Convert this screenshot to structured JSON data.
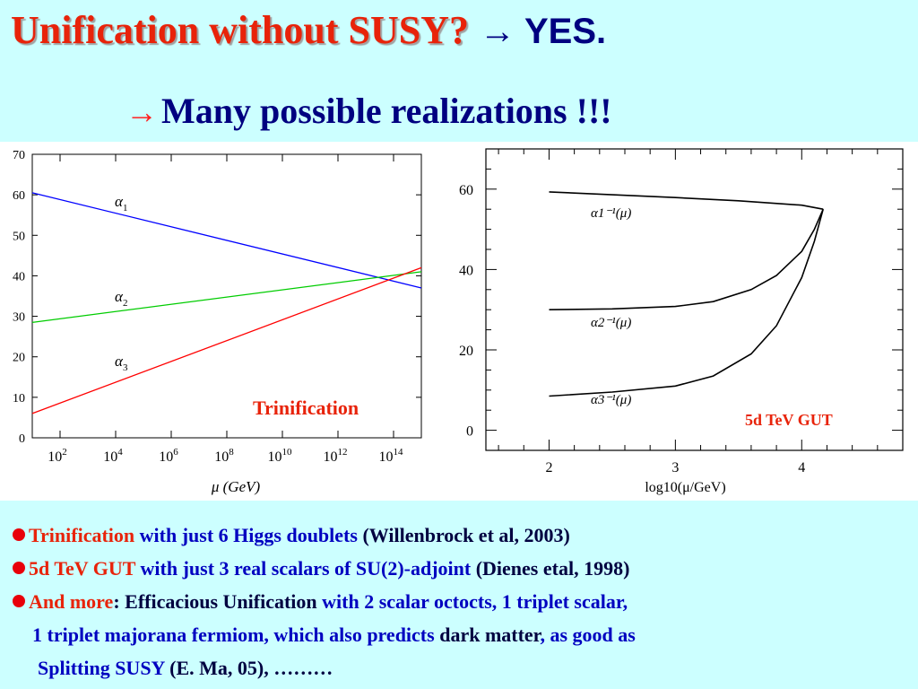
{
  "slide": {
    "title_red": "Unification without SUSY?",
    "title_arrow": "→",
    "title_yes": "YES.",
    "subtitle_arrow": "→",
    "subtitle": "Many possible realizations !!!"
  },
  "left_label": "Trinification",
  "right_label": "5d TeV GUT",
  "chart_data": [
    {
      "type": "line",
      "title": "",
      "xlabel": "μ (GeV)",
      "ylabel": "",
      "x_scale": "log",
      "xlim": [
        10,
        1000000000000000.0
      ],
      "ylim": [
        0,
        70
      ],
      "x_ticks": [
        "10^2",
        "10^4",
        "10^6",
        "10^8",
        "10^10",
        "10^12",
        "10^14"
      ],
      "y_ticks": [
        0,
        10,
        20,
        30,
        40,
        50,
        60,
        70
      ],
      "series": [
        {
          "name": "α1",
          "color": "#0000ff",
          "x": [
            10,
            1000000000000000.0
          ],
          "y": [
            60.5,
            37
          ]
        },
        {
          "name": "α2",
          "color": "#00cc00",
          "x": [
            10,
            1000000000000000.0
          ],
          "y": [
            28.5,
            41
          ]
        },
        {
          "name": "α3",
          "color": "#ff0000",
          "x": [
            10,
            1000000000000000.0
          ],
          "y": [
            6,
            42
          ]
        }
      ]
    },
    {
      "type": "line",
      "title": "",
      "xlabel": "log10(μ/GeV)",
      "ylabel": "",
      "xlim": [
        1.5,
        4.8
      ],
      "ylim": [
        -5,
        70
      ],
      "x_ticks": [
        2,
        3,
        4
      ],
      "y_ticks": [
        0,
        20,
        40,
        60
      ],
      "series": [
        {
          "name": "α1⁻¹(μ)",
          "x": [
            2,
            2.5,
            3,
            3.5,
            4,
            4.17
          ],
          "y": [
            59.3,
            58.6,
            57.9,
            57.1,
            56,
            55
          ]
        },
        {
          "name": "α2⁻¹(μ)",
          "x": [
            2,
            2.5,
            3,
            3.3,
            3.6,
            3.8,
            4.0,
            4.1,
            4.17
          ],
          "y": [
            30,
            30.2,
            30.8,
            32,
            35,
            38.5,
            44.5,
            50,
            55
          ]
        },
        {
          "name": "α3⁻¹(μ)",
          "x": [
            2,
            2.5,
            3,
            3.3,
            3.6,
            3.8,
            4.0,
            4.1,
            4.17
          ],
          "y": [
            8.5,
            9.5,
            11,
            13.5,
            19,
            26,
            38,
            47,
            55
          ]
        }
      ]
    }
  ],
  "bullets": [
    [
      {
        "t": "Trinification",
        "c": "r"
      },
      {
        "t": " with just 6 Higgs doublets ",
        "c": "b"
      },
      {
        "t": "(Willenbrock et al, 2003)",
        "c": "k"
      }
    ],
    [
      {
        "t": "5d TeV GUT",
        "c": "r"
      },
      {
        "t": " with just 3 real scalars of SU(2)-adjoint ",
        "c": "b"
      },
      {
        "t": "(Dienes etal, 1998)",
        "c": "k"
      }
    ],
    [
      {
        "t": "And more",
        "c": "r"
      },
      {
        "t": ": Efficacious Unification ",
        "c": "k"
      },
      {
        "t": "with 2 scalar octocts, 1 triplet scalar,",
        "c": "b"
      }
    ],
    [
      {
        "t": "1 triplet majorana fermiom, which also predicts ",
        "c": "b"
      },
      {
        "t": "dark matter",
        "c": "k"
      },
      {
        "t": ", as good as",
        "c": "b"
      }
    ],
    [
      {
        "t": "Splitting SUSY ",
        "c": "b"
      },
      {
        "t": "(E. Ma, 05), ………",
        "c": "k"
      }
    ]
  ]
}
